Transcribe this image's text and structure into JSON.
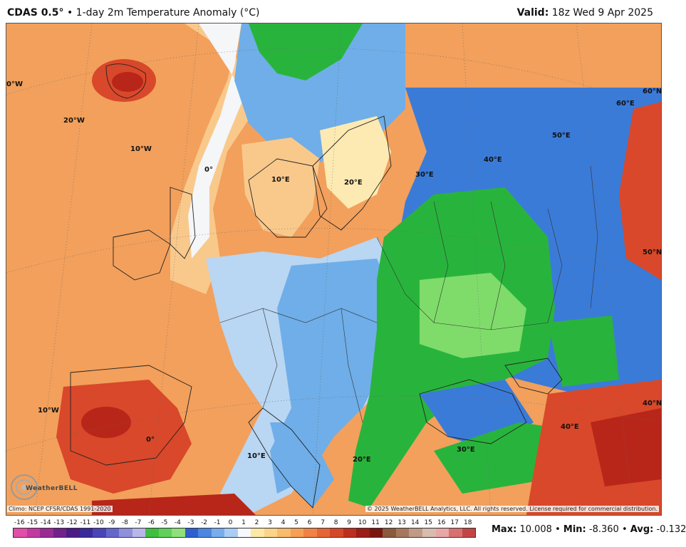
{
  "header": {
    "model": "CDAS 0.5°",
    "separator": "•",
    "product": "1-day 2m Temperature Anomaly (°C)",
    "valid_label": "Valid:",
    "valid_value": "18z Wed 9 Apr 2025"
  },
  "map": {
    "region": "Europe",
    "lon_labels": [
      "0°W",
      "20°W",
      "10°W",
      "0°",
      "10°E",
      "20°E",
      "30°E",
      "40°E",
      "50°E",
      "60°E",
      "60°N",
      "50°N",
      "40°N",
      "40°E",
      "30°E",
      "20°E",
      "10°E",
      "0°",
      "10°W"
    ],
    "colors": {
      "warm_orange": "#f2a05c",
      "light_orange": "#f9c98c",
      "pale_yellow": "#fdeab2",
      "white": "#f4f6f8",
      "pale_blue": "#b9d6f2",
      "light_blue": "#6faee8",
      "blue": "#3b7bd8",
      "green": "#28b43c",
      "light_green": "#7fdc6a",
      "dark_red": "#b8261a",
      "red": "#d9482a"
    }
  },
  "footer": {
    "climo": "Climo: NCEP CFSR/CDAS 1991-2020",
    "copyright": "© 2025 WeatherBELL Analytics, LLC. All rights reserved. License required for commercial distribution.",
    "logo_text": "WeatherBELL"
  },
  "colorbar": {
    "ticks": [
      "-16",
      "-15",
      "-14",
      "-13",
      "-12",
      "-11",
      "-10",
      "-9",
      "-8",
      "-7",
      "-6",
      "-5",
      "-4",
      "-3",
      "-2",
      "-1",
      "0",
      "1",
      "2",
      "3",
      "4",
      "5",
      "6",
      "7",
      "8",
      "9",
      "10",
      "11",
      "12",
      "13",
      "14",
      "15",
      "16",
      "17",
      "18"
    ],
    "colors": [
      "#e14fa8",
      "#c23aa0",
      "#9a2b94",
      "#72208a",
      "#4c1a86",
      "#3a2a9a",
      "#4a44b8",
      "#6466cc",
      "#8f8fdc",
      "#b9b6ea",
      "#3fbf3f",
      "#5fd15a",
      "#8fe07a",
      "#2f5fcf",
      "#4d86e0",
      "#79acec",
      "#a9cdf4",
      "#f6f8fb",
      "#fde9a6",
      "#fbd489",
      "#f9bb6c",
      "#f6a055",
      "#f08245",
      "#e56536",
      "#d4482a",
      "#bb2f1e",
      "#9c1e16",
      "#7a1610",
      "#8b5a3e",
      "#a5785e",
      "#c09a86",
      "#d8bcae",
      "#e9a6a6",
      "#d87070",
      "#c24545"
    ]
  },
  "stats": {
    "max_label": "Max:",
    "max_value": "10.008",
    "min_label": "Min:",
    "min_value": "-8.360",
    "avg_label": "Avg:",
    "avg_value": "-0.132"
  }
}
